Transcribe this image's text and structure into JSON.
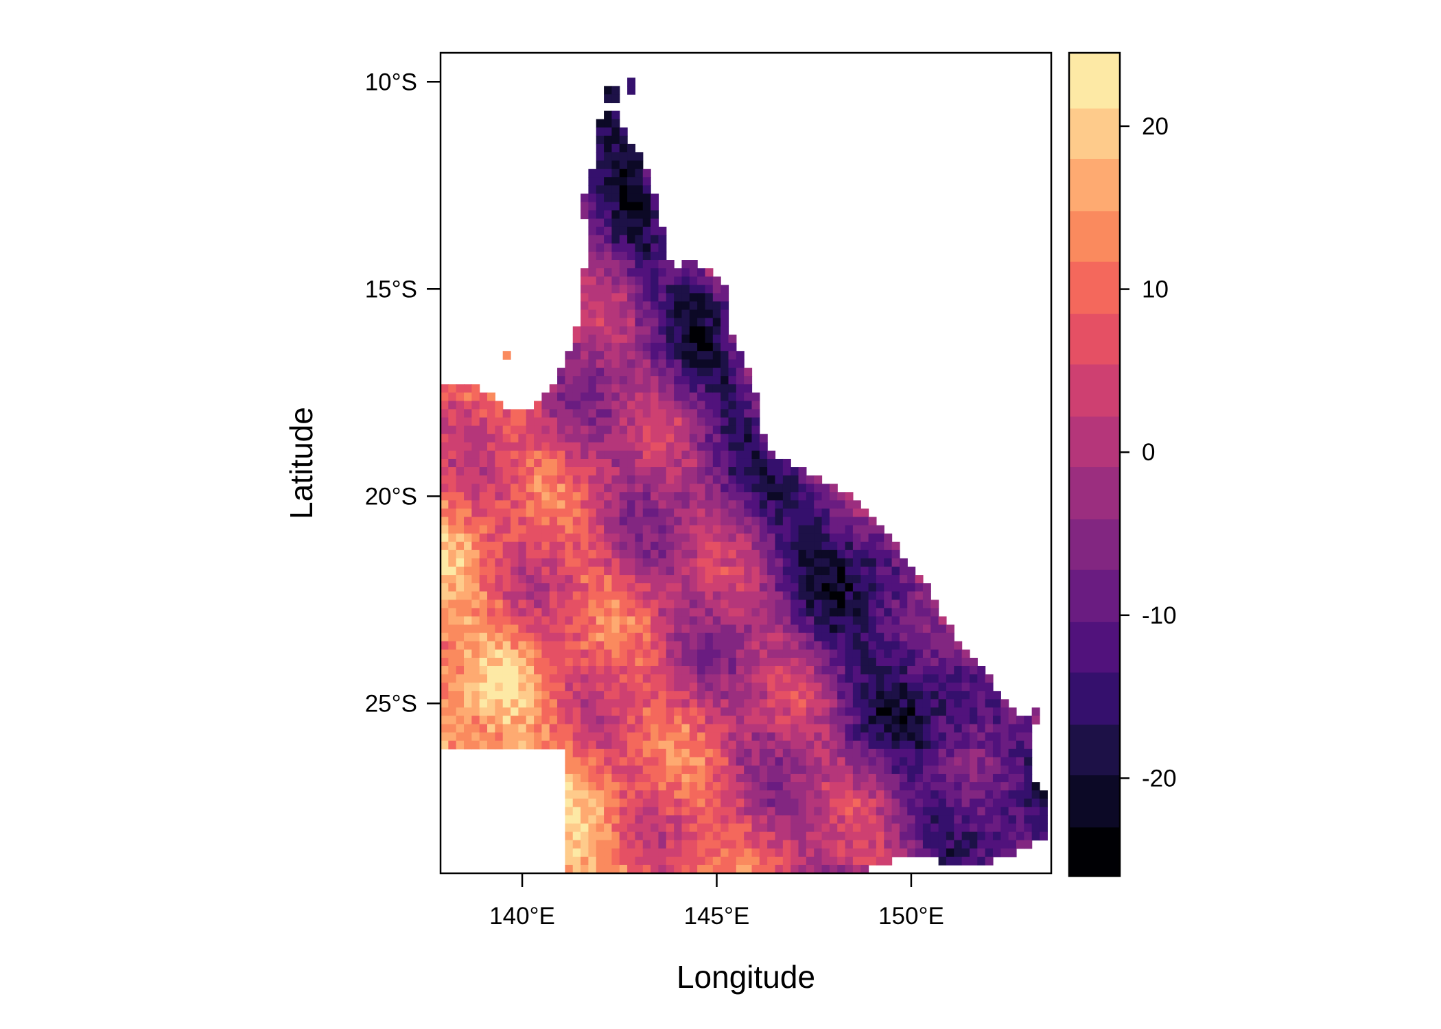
{
  "chart_data": {
    "type": "heatmap",
    "title": "",
    "xlabel": "Longitude",
    "ylabel": "Latitude",
    "xlim": [
      137.9,
      153.6
    ],
    "ylim": [
      -29.1,
      -9.3
    ],
    "x_ticks": [
      {
        "value": 140,
        "label": "140°E"
      },
      {
        "value": 145,
        "label": "145°E"
      },
      {
        "value": 150,
        "label": "150°E"
      }
    ],
    "y_ticks": [
      {
        "value": -10,
        "label": "10°S"
      },
      {
        "value": -15,
        "label": "15°S"
      },
      {
        "value": -20,
        "label": "20°S"
      },
      {
        "value": -25,
        "label": "25°S"
      }
    ],
    "colorbar": {
      "range": [
        -26,
        24.5
      ],
      "breaks": [
        -26,
        -23,
        -19.8,
        -16.7,
        -13.5,
        -10.4,
        -7.2,
        -4.1,
        -0.9,
        2.2,
        5.4,
        8.5,
        11.7,
        14.8,
        18,
        21.1,
        24.5
      ],
      "colors": [
        "#000004",
        "#0c0926",
        "#1d1147",
        "#35106d",
        "#51127c",
        "#6a1c81",
        "#822681",
        "#9b2e7f",
        "#b5367a",
        "#ce4071",
        "#e55064",
        "#f4685c",
        "#fa8a5e",
        "#feaa71",
        "#fecb8b",
        "#fde9a5"
      ],
      "ticks": [
        {
          "value": 20,
          "label": "20"
        },
        {
          "value": 10,
          "label": "10"
        },
        {
          "value": 0,
          "label": "0"
        },
        {
          "value": -10,
          "label": "-10"
        },
        {
          "value": -20,
          "label": "-20"
        }
      ]
    },
    "grid": false,
    "legend": "colorbar-right",
    "region": "Queensland, Australia",
    "cell_size_deg": 0.2,
    "field_description": "Gridded raster: values lowest (about -10 to -20) along the north-east coastal ranges and Cape York, rising to about 10–20 in the south-west interior."
  }
}
